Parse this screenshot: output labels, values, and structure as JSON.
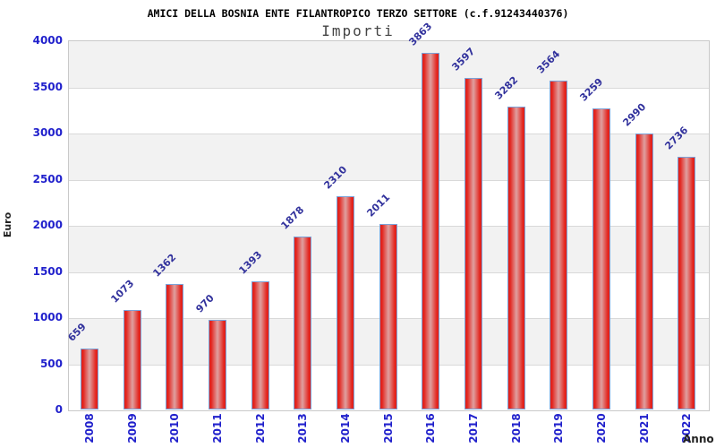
{
  "header": {
    "title": "AMICI DELLA BOSNIA ENTE FILANTROPICO TERZO SETTORE (c.f.91243440376)",
    "subtitle": "Importi"
  },
  "chart_data": {
    "type": "bar",
    "title": "AMICI DELLA BOSNIA ENTE FILANTROPICO TERZO SETTORE (c.f.91243440376)",
    "subtitle": "Importi",
    "categories": [
      "2008",
      "2009",
      "2010",
      "2011",
      "2012",
      "2013",
      "2014",
      "2015",
      "2016",
      "2017",
      "2018",
      "2019",
      "2020",
      "2021",
      "2022"
    ],
    "values": [
      659,
      1073,
      1362,
      970,
      1393,
      1878,
      2310,
      2011,
      3863,
      3597,
      3282,
      3564,
      3259,
      2990,
      2736
    ],
    "xlabel": "Anno",
    "ylabel": "Euro",
    "ylim": [
      0,
      4000
    ],
    "yticks": [
      0,
      500,
      1000,
      1500,
      2000,
      2500,
      3000,
      3500,
      4000
    ],
    "grid": "horizontal gridlines with alternating gray/white bands",
    "legend": null,
    "value_labels": "above each bar, rotated 45 degrees"
  },
  "colors": {
    "bar_edge": "#e3231c",
    "bar_center": "#dfa0a0",
    "bar_border": "#7aa2d8",
    "axis_text_blue": "#2121cc",
    "value_text": "#31319c",
    "band_gray": "#f2f2f2",
    "band_white": "#ffffff",
    "gridline": "#d9d9d9",
    "plot_border": "#c9c9c9",
    "title_color": "#000000",
    "subtitle_color": "#444444",
    "axis_label_dark": "#222222"
  }
}
